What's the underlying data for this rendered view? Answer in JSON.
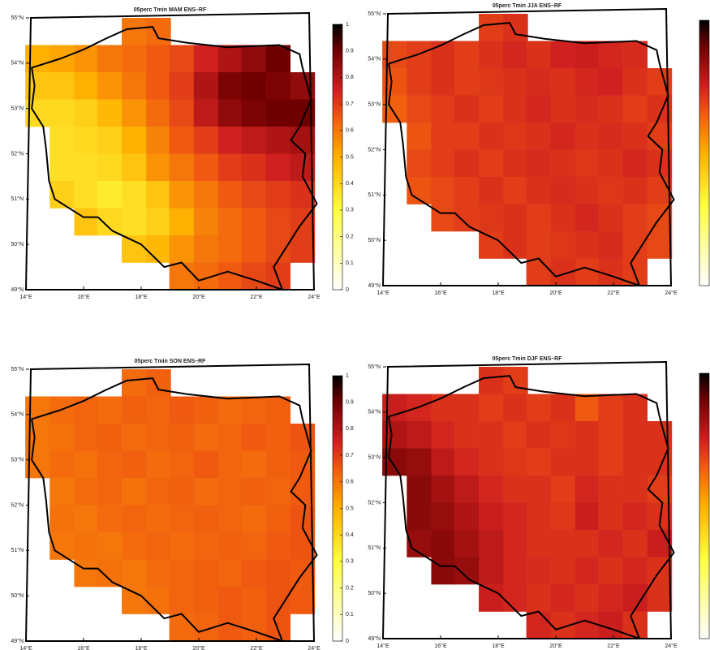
{
  "chart_data": [
    {
      "type": "heatmap",
      "title": "05perc Tmin MAM ENS–RF",
      "x": [
        14.4,
        15.25,
        16.1,
        16.9,
        17.75,
        18.6,
        19.4,
        20.25,
        21.1,
        21.9,
        22.75,
        23.6
      ],
      "y": [
        54.7,
        54.1,
        53.5,
        52.9,
        52.3,
        51.7,
        51.1,
        50.5,
        49.9,
        49.3
      ],
      "values": [
        [
          null,
          null,
          null,
          null,
          0.6,
          0.62,
          null,
          null,
          null,
          null,
          null,
          null
        ],
        [
          0.5,
          0.52,
          0.55,
          0.6,
          0.62,
          0.65,
          0.68,
          0.75,
          0.8,
          0.85,
          0.9,
          null
        ],
        [
          0.45,
          0.45,
          0.5,
          0.55,
          0.6,
          0.65,
          0.7,
          0.8,
          0.88,
          0.9,
          0.88,
          0.85
        ],
        [
          0.4,
          0.4,
          0.42,
          0.48,
          0.55,
          0.62,
          0.68,
          0.78,
          0.85,
          0.88,
          0.9,
          0.9
        ],
        [
          null,
          0.38,
          0.4,
          0.42,
          0.5,
          0.58,
          0.65,
          0.7,
          0.75,
          0.78,
          0.8,
          0.82
        ],
        [
          null,
          0.38,
          0.38,
          0.4,
          0.45,
          0.55,
          0.6,
          0.65,
          0.7,
          0.72,
          0.75,
          0.78
        ],
        [
          null,
          0.42,
          0.38,
          0.35,
          0.38,
          0.45,
          0.55,
          0.6,
          0.65,
          0.68,
          0.7,
          0.72
        ],
        [
          null,
          null,
          0.45,
          0.4,
          0.38,
          0.42,
          0.5,
          0.58,
          0.62,
          0.65,
          0.68,
          0.7
        ],
        [
          null,
          null,
          null,
          null,
          0.45,
          0.48,
          0.55,
          0.6,
          0.62,
          0.65,
          0.68,
          0.7
        ],
        [
          null,
          null,
          null,
          null,
          null,
          null,
          0.6,
          0.62,
          0.65,
          0.68,
          0.7,
          null
        ]
      ],
      "xlim": [
        14,
        24
      ],
      "ylim": [
        49,
        55
      ],
      "xticks": [
        {
          "value": 14,
          "label": "14°E"
        },
        {
          "value": 16,
          "label": "16°E"
        },
        {
          "value": 18,
          "label": "18°E"
        },
        {
          "value": 20,
          "label": "20°E"
        },
        {
          "value": 22,
          "label": "22°E"
        },
        {
          "value": 24,
          "label": "24°E"
        }
      ],
      "yticks": [
        {
          "value": 49,
          "label": "49°N"
        },
        {
          "value": 50,
          "label": "50°N"
        },
        {
          "value": 51,
          "label": "51°N"
        },
        {
          "value": 52,
          "label": "52°N"
        },
        {
          "value": 53,
          "label": "53°N"
        },
        {
          "value": 54,
          "label": "54°N"
        },
        {
          "value": 55,
          "label": "55°N"
        }
      ],
      "clim": [
        0,
        1
      ],
      "colorbar_ticks": [
        0,
        0.1,
        0.2,
        0.3,
        0.4,
        0.5,
        0.6,
        0.7,
        0.8,
        0.9,
        1
      ]
    },
    {
      "type": "heatmap",
      "title": "05perc Tmin JJA ENS–RF",
      "x": [
        14.4,
        15.25,
        16.1,
        16.9,
        17.75,
        18.6,
        19.4,
        20.25,
        21.1,
        21.9,
        22.75,
        23.6
      ],
      "y": [
        54.7,
        54.1,
        53.5,
        52.9,
        52.3,
        51.7,
        51.1,
        50.5,
        49.9,
        49.3
      ],
      "values": [
        [
          null,
          null,
          null,
          null,
          0.7,
          0.72,
          null,
          null,
          null,
          null,
          null,
          null
        ],
        [
          0.68,
          0.7,
          0.72,
          0.7,
          0.72,
          0.74,
          0.72,
          0.75,
          0.76,
          0.74,
          0.73,
          null
        ],
        [
          0.66,
          0.7,
          0.72,
          0.7,
          0.71,
          0.72,
          0.73,
          0.72,
          0.74,
          0.75,
          0.72,
          0.7
        ],
        [
          0.64,
          0.68,
          0.7,
          0.72,
          0.7,
          0.72,
          0.74,
          0.72,
          0.73,
          0.72,
          0.7,
          0.72
        ],
        [
          null,
          0.66,
          0.7,
          0.7,
          0.72,
          0.71,
          0.72,
          0.74,
          0.72,
          0.73,
          0.72,
          0.7
        ],
        [
          null,
          0.68,
          0.7,
          0.72,
          0.7,
          0.72,
          0.73,
          0.72,
          0.71,
          0.72,
          0.74,
          0.72
        ],
        [
          null,
          0.66,
          0.68,
          0.7,
          0.72,
          0.7,
          0.72,
          0.73,
          0.72,
          0.71,
          0.72,
          0.7
        ],
        [
          null,
          null,
          0.68,
          0.7,
          0.71,
          0.72,
          0.7,
          0.72,
          0.74,
          0.72,
          0.7,
          0.68
        ],
        [
          null,
          null,
          null,
          null,
          0.7,
          0.72,
          0.7,
          0.71,
          0.72,
          0.73,
          0.7,
          0.68
        ],
        [
          null,
          null,
          null,
          null,
          null,
          null,
          0.7,
          0.72,
          0.7,
          0.72,
          0.7,
          null
        ]
      ],
      "xlim": [
        14,
        24
      ],
      "ylim": [
        49,
        55
      ],
      "xticks": [
        {
          "value": 14,
          "label": "14°E"
        },
        {
          "value": 16,
          "label": "16°E"
        },
        {
          "value": 18,
          "label": "18°E"
        },
        {
          "value": 20,
          "label": "20°E"
        },
        {
          "value": 22,
          "label": "22°E"
        },
        {
          "value": 24,
          "label": "24°E"
        }
      ],
      "yticks": [
        {
          "value": 49,
          "label": "49°N"
        },
        {
          "value": 50,
          "label": "50°N"
        },
        {
          "value": 51,
          "label": "51°N"
        },
        {
          "value": 52,
          "label": "52°N"
        },
        {
          "value": 53,
          "label": "53°N"
        },
        {
          "value": 54,
          "label": "54°N"
        },
        {
          "value": 55,
          "label": "55°N"
        }
      ],
      "clim": [
        0,
        1
      ]
    },
    {
      "type": "heatmap",
      "title": "05perc Tmin SON ENS–RF",
      "x": [
        14.4,
        15.25,
        16.1,
        16.9,
        17.75,
        18.6,
        19.4,
        20.25,
        21.1,
        21.9,
        22.75,
        23.6
      ],
      "y": [
        54.7,
        54.1,
        53.5,
        52.9,
        52.3,
        51.7,
        51.1,
        50.5,
        49.9,
        49.3
      ],
      "values": [
        [
          null,
          null,
          null,
          null,
          0.62,
          0.64,
          null,
          null,
          null,
          null,
          null,
          null
        ],
        [
          0.6,
          0.62,
          0.63,
          0.62,
          0.64,
          0.63,
          0.65,
          0.64,
          0.62,
          0.63,
          0.64,
          null
        ],
        [
          0.6,
          0.61,
          0.63,
          0.64,
          0.62,
          0.63,
          0.64,
          0.62,
          0.63,
          0.65,
          0.64,
          0.66
        ],
        [
          0.6,
          0.62,
          0.61,
          0.63,
          0.64,
          0.62,
          0.63,
          0.65,
          0.63,
          0.62,
          0.64,
          0.65
        ],
        [
          null,
          0.6,
          0.62,
          0.63,
          0.61,
          0.63,
          0.64,
          0.62,
          0.63,
          0.64,
          0.63,
          0.65
        ],
        [
          null,
          0.61,
          0.6,
          0.62,
          0.63,
          0.62,
          0.63,
          0.64,
          0.63,
          0.62,
          0.64,
          0.66
        ],
        [
          null,
          0.6,
          0.61,
          0.6,
          0.62,
          0.63,
          0.62,
          0.63,
          0.64,
          0.63,
          0.65,
          0.66
        ],
        [
          null,
          null,
          0.6,
          0.61,
          0.6,
          0.62,
          0.63,
          0.64,
          0.63,
          0.65,
          0.66,
          0.65
        ],
        [
          null,
          null,
          null,
          null,
          0.6,
          0.61,
          0.63,
          0.64,
          0.65,
          0.64,
          0.66,
          0.65
        ],
        [
          null,
          null,
          null,
          null,
          null,
          null,
          0.62,
          0.63,
          0.65,
          0.64,
          0.66,
          null
        ]
      ],
      "xlim": [
        14,
        24
      ],
      "ylim": [
        49,
        55
      ],
      "xticks": [
        {
          "value": 14,
          "label": "14°E"
        },
        {
          "value": 16,
          "label": "16°E"
        },
        {
          "value": 18,
          "label": "18°E"
        },
        {
          "value": 20,
          "label": "20°E"
        },
        {
          "value": 22,
          "label": "22°E"
        },
        {
          "value": 24,
          "label": "24°E"
        }
      ],
      "yticks": [
        {
          "value": 49,
          "label": "49°N"
        },
        {
          "value": 50,
          "label": "50°N"
        },
        {
          "value": 51,
          "label": "51°N"
        },
        {
          "value": 52,
          "label": "52°N"
        },
        {
          "value": 53,
          "label": "53°N"
        },
        {
          "value": 54,
          "label": "54°N"
        },
        {
          "value": 55,
          "label": "55°N"
        }
      ],
      "clim": [
        0,
        1
      ],
      "colorbar_ticks": [
        0,
        0.1,
        0.2,
        0.3,
        0.4,
        0.5,
        0.6,
        0.7,
        0.8,
        0.9,
        1
      ]
    },
    {
      "type": "heatmap",
      "title": "05perc Tmin DJF ENS–RF",
      "x": [
        14.4,
        15.25,
        16.1,
        16.9,
        17.75,
        18.6,
        19.4,
        20.25,
        21.1,
        21.9,
        22.75,
        23.6
      ],
      "y": [
        54.7,
        54.1,
        53.5,
        52.9,
        52.3,
        51.7,
        51.1,
        50.5,
        49.9,
        49.3
      ],
      "values": [
        [
          null,
          null,
          null,
          null,
          0.72,
          0.7,
          null,
          null,
          null,
          null,
          null,
          null
        ],
        [
          0.76,
          0.74,
          0.72,
          0.72,
          0.7,
          0.72,
          0.7,
          0.72,
          0.65,
          0.7,
          0.72,
          null
        ],
        [
          0.8,
          0.78,
          0.74,
          0.72,
          0.72,
          0.7,
          0.72,
          0.71,
          0.72,
          0.7,
          0.72,
          0.72
        ],
        [
          0.86,
          0.84,
          0.78,
          0.74,
          0.72,
          0.71,
          0.7,
          0.72,
          0.72,
          0.7,
          0.72,
          0.72
        ],
        [
          null,
          0.86,
          0.82,
          0.78,
          0.74,
          0.72,
          0.72,
          0.7,
          0.74,
          0.72,
          0.72,
          0.7
        ],
        [
          null,
          0.86,
          0.84,
          0.8,
          0.76,
          0.74,
          0.72,
          0.71,
          0.76,
          0.72,
          0.74,
          0.72
        ],
        [
          null,
          0.84,
          0.86,
          0.82,
          0.78,
          0.74,
          0.72,
          0.72,
          0.72,
          0.74,
          0.72,
          0.76
        ],
        [
          null,
          null,
          0.86,
          0.84,
          0.78,
          0.74,
          0.73,
          0.72,
          0.74,
          0.72,
          0.74,
          0.72
        ],
        [
          null,
          null,
          null,
          null,
          0.76,
          0.74,
          0.72,
          0.74,
          0.72,
          0.74,
          0.76,
          0.72
        ],
        [
          null,
          null,
          null,
          null,
          null,
          null,
          0.74,
          0.72,
          0.74,
          0.76,
          0.72,
          null
        ]
      ],
      "xlim": [
        14,
        24
      ],
      "ylim": [
        49,
        55
      ],
      "xticks": [
        {
          "value": 14,
          "label": "14°E"
        },
        {
          "value": 16,
          "label": "16°E"
        },
        {
          "value": 18,
          "label": "18°E"
        },
        {
          "value": 20,
          "label": "20°E"
        },
        {
          "value": 22,
          "label": "22°E"
        },
        {
          "value": 24,
          "label": "24°E"
        }
      ],
      "yticks": [
        {
          "value": 49,
          "label": "49°N"
        },
        {
          "value": 50,
          "label": "50°N"
        },
        {
          "value": 51,
          "label": "51°N"
        },
        {
          "value": 52,
          "label": "52°N"
        },
        {
          "value": 53,
          "label": "53°N"
        },
        {
          "value": 54,
          "label": "54°N"
        },
        {
          "value": 55,
          "label": "55°N"
        }
      ],
      "clim": [
        0,
        1
      ]
    }
  ],
  "colormap": [
    {
      "value": 0,
      "color": "#ffffff"
    },
    {
      "value": 0.3,
      "color": "#ffff40"
    },
    {
      "value": 0.5,
      "color": "#ffb000"
    },
    {
      "value": 0.65,
      "color": "#f05a10"
    },
    {
      "value": 0.75,
      "color": "#d02020"
    },
    {
      "value": 0.9,
      "color": "#700000"
    },
    {
      "value": 1,
      "color": "#000000"
    }
  ]
}
